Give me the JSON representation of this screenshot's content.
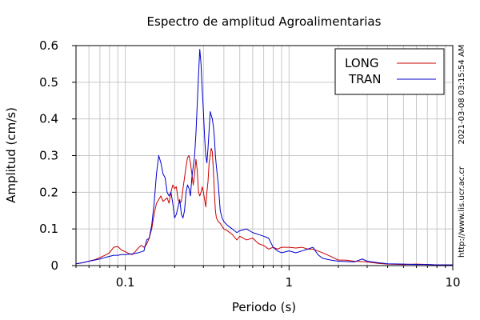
{
  "chart_data": {
    "type": "line",
    "title": "Espectro de amplitud Agroalimentarias",
    "xlabel": "Periodo (s)",
    "ylabel": "Amplitud (cm/s)",
    "xscale": "log",
    "xlim": [
      0.05,
      10
    ],
    "ylim": [
      0,
      0.6
    ],
    "xticks": [
      {
        "value": 0.1,
        "label": "0.1"
      },
      {
        "value": 1,
        "label": "1"
      },
      {
        "value": 10,
        "label": "10"
      }
    ],
    "yticks": [
      {
        "value": 0,
        "label": "0"
      },
      {
        "value": 0.1,
        "label": "0.1"
      },
      {
        "value": 0.2,
        "label": "0.2"
      },
      {
        "value": 0.3,
        "label": "0.3"
      },
      {
        "value": 0.4,
        "label": "0.4"
      },
      {
        "value": 0.5,
        "label": "0.5"
      },
      {
        "value": 0.6,
        "label": "0.6"
      }
    ],
    "grid": true,
    "legend_position": "top-right",
    "series": [
      {
        "name": "LONG",
        "color": "#cc0000",
        "points": [
          [
            0.05,
            0.005
          ],
          [
            0.055,
            0.008
          ],
          [
            0.06,
            0.012
          ],
          [
            0.065,
            0.016
          ],
          [
            0.07,
            0.022
          ],
          [
            0.075,
            0.028
          ],
          [
            0.08,
            0.035
          ],
          [
            0.085,
            0.05
          ],
          [
            0.09,
            0.052
          ],
          [
            0.095,
            0.042
          ],
          [
            0.1,
            0.038
          ],
          [
            0.105,
            0.033
          ],
          [
            0.11,
            0.03
          ],
          [
            0.115,
            0.038
          ],
          [
            0.12,
            0.048
          ],
          [
            0.125,
            0.055
          ],
          [
            0.13,
            0.05
          ],
          [
            0.135,
            0.058
          ],
          [
            0.14,
            0.075
          ],
          [
            0.145,
            0.1
          ],
          [
            0.15,
            0.14
          ],
          [
            0.155,
            0.17
          ],
          [
            0.16,
            0.18
          ],
          [
            0.165,
            0.19
          ],
          [
            0.17,
            0.175
          ],
          [
            0.175,
            0.18
          ],
          [
            0.18,
            0.185
          ],
          [
            0.185,
            0.17
          ],
          [
            0.19,
            0.2
          ],
          [
            0.195,
            0.22
          ],
          [
            0.2,
            0.21
          ],
          [
            0.205,
            0.215
          ],
          [
            0.21,
            0.18
          ],
          [
            0.215,
            0.17
          ],
          [
            0.22,
            0.175
          ],
          [
            0.225,
            0.21
          ],
          [
            0.23,
            0.24
          ],
          [
            0.235,
            0.27
          ],
          [
            0.24,
            0.295
          ],
          [
            0.245,
            0.3
          ],
          [
            0.25,
            0.28
          ],
          [
            0.255,
            0.25
          ],
          [
            0.26,
            0.22
          ],
          [
            0.265,
            0.25
          ],
          [
            0.27,
            0.29
          ],
          [
            0.275,
            0.26
          ],
          [
            0.28,
            0.2
          ],
          [
            0.285,
            0.19
          ],
          [
            0.29,
            0.2
          ],
          [
            0.295,
            0.215
          ],
          [
            0.3,
            0.2
          ],
          [
            0.305,
            0.18
          ],
          [
            0.31,
            0.16
          ],
          [
            0.315,
            0.2
          ],
          [
            0.32,
            0.23
          ],
          [
            0.325,
            0.28
          ],
          [
            0.33,
            0.3
          ],
          [
            0.335,
            0.32
          ],
          [
            0.34,
            0.31
          ],
          [
            0.345,
            0.26
          ],
          [
            0.35,
            0.2
          ],
          [
            0.355,
            0.15
          ],
          [
            0.36,
            0.13
          ],
          [
            0.37,
            0.12
          ],
          [
            0.38,
            0.115
          ],
          [
            0.4,
            0.1
          ],
          [
            0.42,
            0.095
          ],
          [
            0.45,
            0.085
          ],
          [
            0.48,
            0.07
          ],
          [
            0.5,
            0.08
          ],
          [
            0.55,
            0.07
          ],
          [
            0.6,
            0.075
          ],
          [
            0.65,
            0.06
          ],
          [
            0.7,
            0.055
          ],
          [
            0.75,
            0.045
          ],
          [
            0.8,
            0.05
          ],
          [
            0.85,
            0.045
          ],
          [
            0.9,
            0.05
          ],
          [
            1.0,
            0.05
          ],
          [
            1.1,
            0.048
          ],
          [
            1.2,
            0.05
          ],
          [
            1.3,
            0.045
          ],
          [
            1.4,
            0.045
          ],
          [
            1.5,
            0.04
          ],
          [
            1.6,
            0.035
          ],
          [
            1.8,
            0.025
          ],
          [
            2.0,
            0.015
          ],
          [
            2.2,
            0.015
          ],
          [
            2.5,
            0.012
          ],
          [
            3.0,
            0.01
          ],
          [
            3.5,
            0.006
          ],
          [
            4.0,
            0.004
          ],
          [
            5.0,
            0.003
          ],
          [
            6.0,
            0.004
          ],
          [
            7.0,
            0.003
          ],
          [
            8.0,
            0.002
          ],
          [
            10.0,
            0.002
          ]
        ]
      },
      {
        "name": "TRAN",
        "color": "#0000cc",
        "points": [
          [
            0.05,
            0.005
          ],
          [
            0.055,
            0.008
          ],
          [
            0.06,
            0.012
          ],
          [
            0.065,
            0.015
          ],
          [
            0.07,
            0.018
          ],
          [
            0.075,
            0.022
          ],
          [
            0.08,
            0.025
          ],
          [
            0.085,
            0.028
          ],
          [
            0.09,
            0.028
          ],
          [
            0.095,
            0.03
          ],
          [
            0.1,
            0.03
          ],
          [
            0.11,
            0.032
          ],
          [
            0.12,
            0.035
          ],
          [
            0.13,
            0.04
          ],
          [
            0.135,
            0.07
          ],
          [
            0.14,
            0.075
          ],
          [
            0.145,
            0.11
          ],
          [
            0.15,
            0.17
          ],
          [
            0.155,
            0.25
          ],
          [
            0.16,
            0.3
          ],
          [
            0.165,
            0.28
          ],
          [
            0.17,
            0.25
          ],
          [
            0.175,
            0.24
          ],
          [
            0.18,
            0.2
          ],
          [
            0.185,
            0.19
          ],
          [
            0.19,
            0.2
          ],
          [
            0.195,
            0.17
          ],
          [
            0.2,
            0.13
          ],
          [
            0.205,
            0.14
          ],
          [
            0.21,
            0.16
          ],
          [
            0.215,
            0.18
          ],
          [
            0.22,
            0.14
          ],
          [
            0.225,
            0.13
          ],
          [
            0.23,
            0.15
          ],
          [
            0.235,
            0.2
          ],
          [
            0.24,
            0.22
          ],
          [
            0.245,
            0.21
          ],
          [
            0.25,
            0.19
          ],
          [
            0.255,
            0.24
          ],
          [
            0.26,
            0.27
          ],
          [
            0.265,
            0.3
          ],
          [
            0.27,
            0.36
          ],
          [
            0.275,
            0.44
          ],
          [
            0.28,
            0.52
          ],
          [
            0.285,
            0.59
          ],
          [
            0.29,
            0.55
          ],
          [
            0.295,
            0.48
          ],
          [
            0.3,
            0.42
          ],
          [
            0.305,
            0.35
          ],
          [
            0.31,
            0.3
          ],
          [
            0.315,
            0.28
          ],
          [
            0.32,
            0.32
          ],
          [
            0.325,
            0.37
          ],
          [
            0.33,
            0.42
          ],
          [
            0.335,
            0.41
          ],
          [
            0.34,
            0.4
          ],
          [
            0.345,
            0.38
          ],
          [
            0.35,
            0.35
          ],
          [
            0.355,
            0.3
          ],
          [
            0.36,
            0.27
          ],
          [
            0.37,
            0.22
          ],
          [
            0.38,
            0.15
          ],
          [
            0.39,
            0.13
          ],
          [
            0.4,
            0.12
          ],
          [
            0.42,
            0.11
          ],
          [
            0.45,
            0.1
          ],
          [
            0.48,
            0.09
          ],
          [
            0.5,
            0.095
          ],
          [
            0.55,
            0.1
          ],
          [
            0.6,
            0.09
          ],
          [
            0.65,
            0.085
          ],
          [
            0.7,
            0.08
          ],
          [
            0.75,
            0.075
          ],
          [
            0.8,
            0.05
          ],
          [
            0.85,
            0.04
          ],
          [
            0.9,
            0.035
          ],
          [
            1.0,
            0.04
          ],
          [
            1.1,
            0.035
          ],
          [
            1.2,
            0.04
          ],
          [
            1.3,
            0.045
          ],
          [
            1.4,
            0.05
          ],
          [
            1.5,
            0.03
          ],
          [
            1.6,
            0.02
          ],
          [
            1.8,
            0.015
          ],
          [
            2.0,
            0.012
          ],
          [
            2.5,
            0.01
          ],
          [
            2.8,
            0.018
          ],
          [
            3.0,
            0.012
          ],
          [
            3.5,
            0.008
          ],
          [
            4.0,
            0.005
          ],
          [
            5.0,
            0.004
          ],
          [
            6.0,
            0.003
          ],
          [
            7.0,
            0.003
          ],
          [
            8.0,
            0.002
          ],
          [
            10.0,
            0.002
          ]
        ]
      }
    ]
  },
  "side_labels": {
    "timestamp": "2021-03-08 03:15:54 AM",
    "website": "http://www.lis.ucr.ac.cr"
  }
}
